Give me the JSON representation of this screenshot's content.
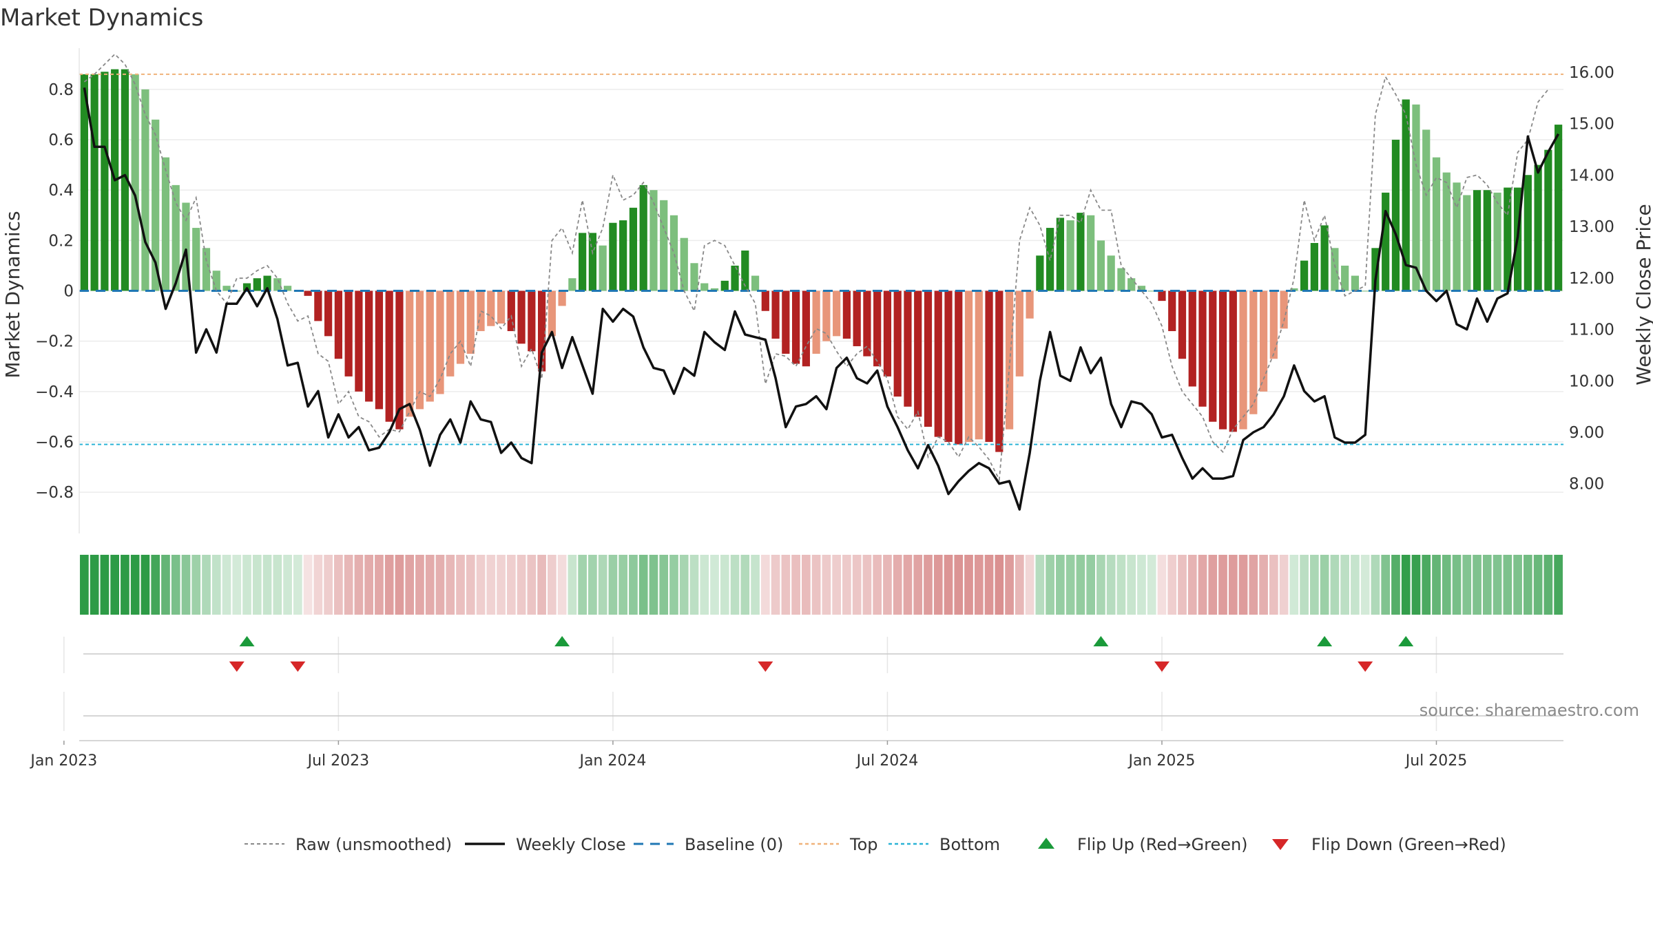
{
  "chart_data": {
    "type": "bar",
    "title": "Market Dynamics",
    "ylabel_left": "Market Dynamics",
    "ylabel_right": "Weekly Close Price",
    "yticks_left": [
      "0.8",
      "0.6",
      "0.4",
      "0.2",
      "0",
      "−0.2",
      "−0.4",
      "−0.6",
      "−0.8"
    ],
    "ytick_values_left": [
      0.8,
      0.6,
      0.4,
      0.2,
      0,
      -0.2,
      -0.4,
      -0.6,
      -0.8
    ],
    "yticks_right": [
      "16.00",
      "15.00",
      "14.00",
      "13.00",
      "12.00",
      "11.00",
      "10.00",
      "9.00",
      "8.00"
    ],
    "ytick_values_right": [
      16,
      15,
      14,
      13,
      12,
      11,
      10,
      9,
      8
    ],
    "ylim_left": [
      -0.95,
      0.95
    ],
    "ylim_right": [
      7.1,
      16.4
    ],
    "top_level": 0.86,
    "bottom_level": -0.61,
    "baseline": 0,
    "xtick_labels": [
      "Jan 2023",
      "Jul 2023",
      "Jan 2024",
      "Jul 2024",
      "Jan 2025",
      "Jul 2025"
    ],
    "xtick_weeks": [
      -2,
      25,
      52,
      79,
      106,
      133
    ],
    "values": [
      0.86,
      0.86,
      0.87,
      0.88,
      0.88,
      0.86,
      0.8,
      0.68,
      0.53,
      0.42,
      0.35,
      0.25,
      0.17,
      0.08,
      0.02,
      0.0,
      0.03,
      0.05,
      0.06,
      0.05,
      0.02,
      0.0,
      -0.02,
      -0.12,
      -0.18,
      -0.27,
      -0.34,
      -0.4,
      -0.44,
      -0.47,
      -0.52,
      -0.55,
      -0.5,
      -0.47,
      -0.44,
      -0.41,
      -0.34,
      -0.29,
      -0.25,
      -0.16,
      -0.14,
      -0.13,
      -0.16,
      -0.21,
      -0.24,
      -0.32,
      -0.18,
      -0.06,
      0.05,
      0.23,
      0.23,
      0.18,
      0.27,
      0.28,
      0.33,
      0.42,
      0.4,
      0.36,
      0.3,
      0.21,
      0.11,
      0.03,
      0.01,
      0.04,
      0.1,
      0.16,
      0.06,
      -0.08,
      -0.19,
      -0.25,
      -0.29,
      -0.3,
      -0.25,
      -0.2,
      -0.18,
      -0.19,
      -0.22,
      -0.26,
      -0.3,
      -0.34,
      -0.42,
      -0.46,
      -0.5,
      -0.54,
      -0.58,
      -0.6,
      -0.61,
      -0.6,
      -0.59,
      -0.6,
      -0.64,
      -0.55,
      -0.34,
      -0.11,
      0.14,
      0.25,
      0.29,
      0.28,
      0.31,
      0.3,
      0.2,
      0.14,
      0.09,
      0.05,
      0.02,
      0.0,
      -0.04,
      -0.16,
      -0.27,
      -0.38,
      -0.46,
      -0.52,
      -0.55,
      -0.56,
      -0.55,
      -0.49,
      -0.4,
      -0.27,
      -0.15,
      0.01,
      0.12,
      0.19,
      0.26,
      0.17,
      0.1,
      0.06,
      0.0,
      0.17,
      0.39,
      0.6,
      0.76,
      0.74,
      0.64,
      0.53,
      0.47,
      0.43,
      0.38,
      0.4,
      0.4,
      0.39,
      0.41,
      0.41,
      0.46,
      0.5,
      0.56,
      0.66
    ],
    "raw_values": [
      0.83,
      0.86,
      0.9,
      0.94,
      0.9,
      0.82,
      0.7,
      0.62,
      0.48,
      0.35,
      0.28,
      0.37,
      0.12,
      0.0,
      -0.05,
      0.05,
      0.05,
      0.08,
      0.1,
      0.05,
      -0.05,
      -0.12,
      -0.1,
      -0.25,
      -0.28,
      -0.45,
      -0.4,
      -0.5,
      -0.52,
      -0.58,
      -0.55,
      -0.56,
      -0.48,
      -0.4,
      -0.42,
      -0.35,
      -0.25,
      -0.2,
      -0.3,
      -0.08,
      -0.1,
      -0.15,
      -0.1,
      -0.3,
      -0.23,
      -0.35,
      0.2,
      0.25,
      0.15,
      0.36,
      0.15,
      0.25,
      0.46,
      0.36,
      0.38,
      0.43,
      0.35,
      0.25,
      0.15,
      0.0,
      -0.08,
      0.18,
      0.2,
      0.18,
      0.1,
      0.02,
      -0.05,
      -0.37,
      -0.25,
      -0.26,
      -0.3,
      -0.22,
      -0.15,
      -0.17,
      -0.24,
      -0.3,
      -0.25,
      -0.22,
      -0.28,
      -0.35,
      -0.5,
      -0.55,
      -0.48,
      -0.66,
      -0.58,
      -0.6,
      -0.66,
      -0.58,
      -0.62,
      -0.67,
      -0.75,
      -0.3,
      0.2,
      0.33,
      0.26,
      0.12,
      0.3,
      0.3,
      0.27,
      0.4,
      0.32,
      0.32,
      0.1,
      0.05,
      0.0,
      -0.05,
      -0.14,
      -0.3,
      -0.4,
      -0.45,
      -0.5,
      -0.6,
      -0.64,
      -0.55,
      -0.5,
      -0.45,
      -0.35,
      -0.25,
      -0.12,
      0.05,
      0.36,
      0.2,
      0.3,
      0.1,
      -0.02,
      0.0,
      0.02,
      0.7,
      0.85,
      0.78,
      0.7,
      0.5,
      0.38,
      0.45,
      0.43,
      0.33,
      0.45,
      0.46,
      0.42,
      0.35,
      0.3,
      0.55,
      0.6,
      0.75,
      0.8
    ],
    "close": [
      15.7,
      14.55,
      14.55,
      13.9,
      14.0,
      13.6,
      12.7,
      12.3,
      11.4,
      11.9,
      12.55,
      10.55,
      11.0,
      10.55,
      11.5,
      11.5,
      11.8,
      11.45,
      11.8,
      11.2,
      10.3,
      10.35,
      9.5,
      9.8,
      8.9,
      9.35,
      8.9,
      9.1,
      8.65,
      8.7,
      9.0,
      9.45,
      9.55,
      9.05,
      8.35,
      8.95,
      9.25,
      8.8,
      9.6,
      9.25,
      9.2,
      8.6,
      8.8,
      8.5,
      8.4,
      10.55,
      10.95,
      10.25,
      10.85,
      10.3,
      9.75,
      11.4,
      11.15,
      11.4,
      11.25,
      10.65,
      10.25,
      10.2,
      9.75,
      10.25,
      10.1,
      10.95,
      10.75,
      10.6,
      11.35,
      10.9,
      10.85,
      10.8,
      10.05,
      9.1,
      9.5,
      9.55,
      9.7,
      9.45,
      10.25,
      10.45,
      10.05,
      9.95,
      10.2,
      9.5,
      9.1,
      8.65,
      8.3,
      8.75,
      8.35,
      7.8,
      8.05,
      8.25,
      8.4,
      8.3,
      8.0,
      8.05,
      7.5,
      8.6,
      10.0,
      10.95,
      10.1,
      10.0,
      10.65,
      10.15,
      10.45,
      9.55,
      9.1,
      9.6,
      9.55,
      9.35,
      8.9,
      8.95,
      8.5,
      8.1,
      8.3,
      8.1,
      8.1,
      8.15,
      8.85,
      9.0,
      9.1,
      9.35,
      9.7,
      10.3,
      9.8,
      9.6,
      9.7,
      8.9,
      8.8,
      8.8,
      8.95,
      11.95,
      13.3,
      12.85,
      12.25,
      12.2,
      11.75,
      11.55,
      11.75,
      11.1,
      11.0,
      11.6,
      11.15,
      11.6,
      11.7,
      12.8,
      14.75,
      14.05,
      14.45,
      14.8
    ],
    "flips_up": [
      16,
      47,
      100,
      122,
      130
    ],
    "flips_down": [
      15,
      21,
      67,
      106,
      126
    ],
    "legend": [
      {
        "label": "Raw (unsmoothed)",
        "style": "dashed-gray"
      },
      {
        "label": "Weekly Close",
        "style": "solid-black"
      },
      {
        "label": "Baseline (0)",
        "style": "dashed-blue"
      },
      {
        "label": "Top",
        "style": "dotted-orange"
      },
      {
        "label": "Bottom",
        "style": "dotted-cyan"
      },
      {
        "label": "Flip Up (Red→Green)",
        "style": "triangle-up-green"
      },
      {
        "label": "Flip Down (Green→Red)",
        "style": "triangle-down-red"
      }
    ],
    "source": "source: sharemaestro.com",
    "colors": {
      "bar_green_strong": "#228b22",
      "bar_green_light": "#7dbf7d",
      "bar_red_strong": "#b22222",
      "bar_red_light": "#e8967a",
      "raw_line": "#888888",
      "close_line": "#111111",
      "baseline": "#1f77b4",
      "top_line": "#f0b27a",
      "bottom_line": "#2bb3d6",
      "flip_up": "#1a9a3a",
      "flip_down": "#d62728"
    }
  }
}
